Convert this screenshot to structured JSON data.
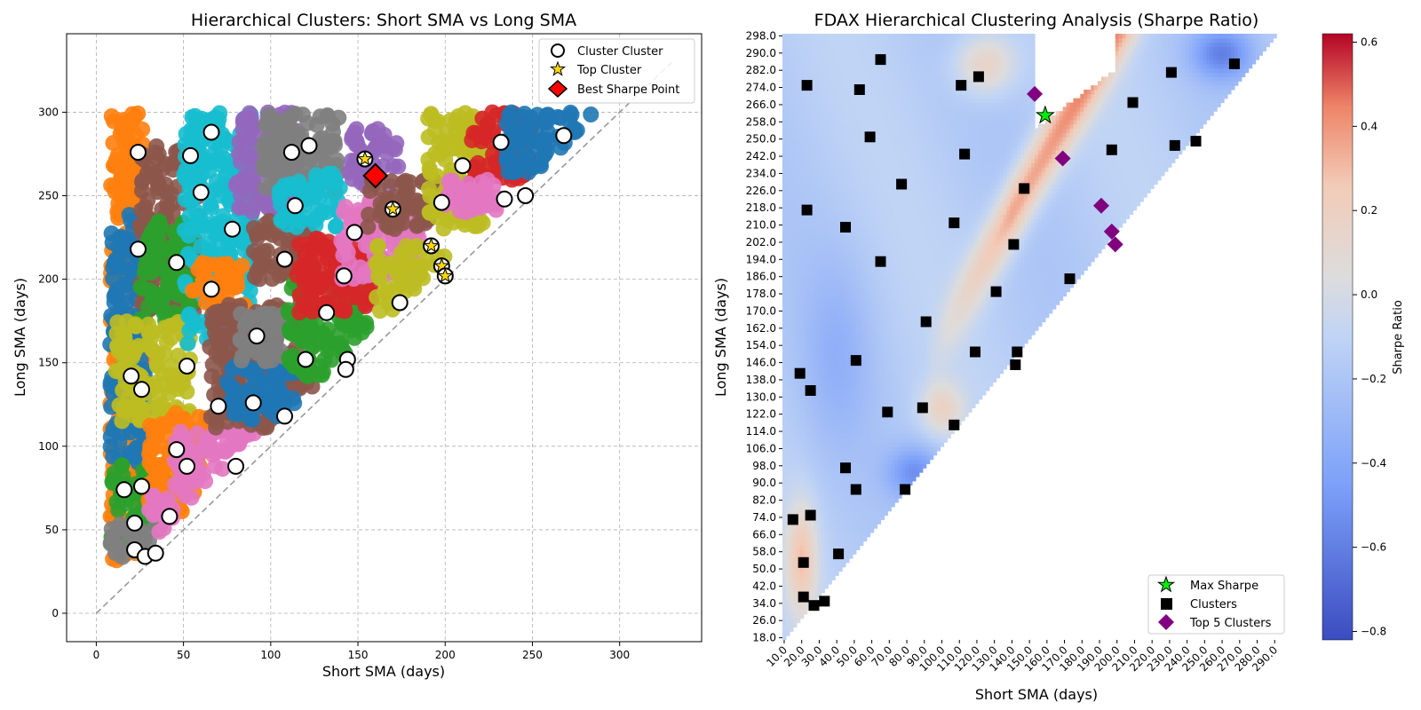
{
  "chart_data": [
    {
      "type": "scatter",
      "title": "Hierarchical Clusters: Short SMA vs Long SMA",
      "xlabel": "Short SMA (days)",
      "ylabel": "Long SMA (days)",
      "xlim": [
        -17,
        347
      ],
      "ylim": [
        -17,
        347
      ],
      "xticks": [
        0,
        50,
        100,
        150,
        200,
        250,
        300
      ],
      "yticks": [
        0,
        50,
        100,
        150,
        200,
        250,
        300
      ],
      "grid": true,
      "legend_position": "top-right",
      "legend": [
        "Cluster Cluster",
        "Top Cluster",
        "Best Sharpe Point"
      ],
      "diagonal_reference_line": [
        [
          0,
          0
        ],
        [
          330,
          330
        ]
      ],
      "cluster_palette": [
        "#1f77b4",
        "#ff7f0e",
        "#2ca02c",
        "#d62728",
        "#9467bd",
        "#8c564b",
        "#e377c2",
        "#7f7f7f",
        "#bcbd22",
        "#17becf"
      ],
      "cluster_regions": [
        {
          "color_index": 1,
          "x": [
            8,
            28
          ],
          "y": [
            20,
            300
          ]
        },
        {
          "color_index": 0,
          "x": [
            8,
            30
          ],
          "y": [
            90,
            240
          ]
        },
        {
          "color_index": 2,
          "x": [
            8,
            40
          ],
          "y": [
            40,
            90
          ]
        },
        {
          "color_index": 7,
          "x": [
            8,
            35
          ],
          "y": [
            25,
            55
          ]
        },
        {
          "color_index": 5,
          "x": [
            25,
            60
          ],
          "y": [
            180,
            280
          ]
        },
        {
          "color_index": 2,
          "x": [
            25,
            55
          ],
          "y": [
            175,
            240
          ]
        },
        {
          "color_index": 8,
          "x": [
            10,
            55
          ],
          "y": [
            115,
            175
          ]
        },
        {
          "color_index": 1,
          "x": [
            30,
            65
          ],
          "y": [
            60,
            120
          ]
        },
        {
          "color_index": 6,
          "x": [
            30,
            55
          ],
          "y": [
            40,
            75
          ]
        },
        {
          "color_index": 6,
          "x": [
            45,
            95
          ],
          "y": [
            75,
            110
          ]
        },
        {
          "color_index": 9,
          "x": [
            50,
            90
          ],
          "y": [
            160,
            300
          ]
        },
        {
          "color_index": 1,
          "x": [
            55,
            85
          ],
          "y": [
            180,
            210
          ]
        },
        {
          "color_index": 5,
          "x": [
            65,
            125
          ],
          "y": [
            110,
            185
          ]
        },
        {
          "color_index": 0,
          "x": [
            75,
            115
          ],
          "y": [
            115,
            150
          ]
        },
        {
          "color_index": 7,
          "x": [
            80,
            110
          ],
          "y": [
            150,
            180
          ]
        },
        {
          "color_index": 4,
          "x": [
            80,
            115
          ],
          "y": [
            240,
            300
          ]
        },
        {
          "color_index": 7,
          "x": [
            95,
            140
          ],
          "y": [
            250,
            300
          ]
        },
        {
          "color_index": 5,
          "x": [
            90,
            125
          ],
          "y": [
            200,
            235
          ]
        },
        {
          "color_index": 9,
          "x": [
            105,
            140
          ],
          "y": [
            230,
            265
          ]
        },
        {
          "color_index": 2,
          "x": [
            110,
            155
          ],
          "y": [
            140,
            200
          ]
        },
        {
          "color_index": 3,
          "x": [
            115,
            160
          ],
          "y": [
            180,
            225
          ]
        },
        {
          "color_index": 6,
          "x": [
            140,
            185
          ],
          "y": [
            200,
            250
          ]
        },
        {
          "color_index": 4,
          "x": [
            145,
            175
          ],
          "y": [
            255,
            290
          ]
        },
        {
          "color_index": 5,
          "x": [
            155,
            195
          ],
          "y": [
            230,
            260
          ]
        },
        {
          "color_index": 8,
          "x": [
            160,
            205
          ],
          "y": [
            180,
            220
          ]
        },
        {
          "color_index": 8,
          "x": [
            190,
            225
          ],
          "y": [
            230,
            300
          ]
        },
        {
          "color_index": 3,
          "x": [
            215,
            250
          ],
          "y": [
            255,
            300
          ]
        },
        {
          "color_index": 6,
          "x": [
            200,
            230
          ],
          "y": [
            240,
            260
          ]
        },
        {
          "color_index": 0,
          "x": [
            235,
            300
          ],
          "y": [
            260,
            300
          ]
        }
      ],
      "cluster_centers": [
        [
          24,
          276
        ],
        [
          54,
          274
        ],
        [
          66,
          288
        ],
        [
          60,
          252
        ],
        [
          78,
          230
        ],
        [
          24,
          218
        ],
        [
          46,
          210
        ],
        [
          66,
          194
        ],
        [
          112,
          276
        ],
        [
          122,
          280
        ],
        [
          114,
          244
        ],
        [
          108,
          212
        ],
        [
          148,
          228
        ],
        [
          142,
          202
        ],
        [
          132,
          180
        ],
        [
          92,
          166
        ],
        [
          120,
          152
        ],
        [
          144,
          152
        ],
        [
          143,
          146
        ],
        [
          174,
          186
        ],
        [
          198,
          246
        ],
        [
          210,
          268
        ],
        [
          232,
          282
        ],
        [
          234,
          248
        ],
        [
          246,
          250
        ],
        [
          268,
          286
        ],
        [
          20,
          142
        ],
        [
          26,
          134
        ],
        [
          52,
          148
        ],
        [
          70,
          124
        ],
        [
          90,
          126
        ],
        [
          108,
          118
        ],
        [
          46,
          98
        ],
        [
          52,
          88
        ],
        [
          80,
          88
        ],
        [
          16,
          74
        ],
        [
          26,
          76
        ],
        [
          22,
          54
        ],
        [
          42,
          58
        ],
        [
          22,
          38
        ],
        [
          28,
          34
        ],
        [
          34,
          36
        ]
      ],
      "top_clusters": [
        [
          154,
          272
        ],
        [
          170,
          242
        ],
        [
          192,
          220
        ],
        [
          198,
          208
        ],
        [
          200,
          202
        ]
      ],
      "best_sharpe_point": [
        160,
        262
      ]
    },
    {
      "type": "heatmap",
      "title": "FDAX Hierarchical Clustering Analysis (Sharpe Ratio)",
      "xlabel": "Short SMA (days)",
      "ylabel": "Long SMA (days)",
      "value_label": "Sharpe Ratio",
      "x_range": [
        10,
        300
      ],
      "y_range": [
        18,
        300
      ],
      "cell_step": 2,
      "x_tick_labels": [
        "10.0",
        "20.0",
        "30.0",
        "40.0",
        "50.0",
        "60.0",
        "70.0",
        "80.0",
        "90.0",
        "100.0",
        "110.0",
        "120.0",
        "130.0",
        "140.0",
        "150.0",
        "160.0",
        "170.0",
        "180.0",
        "190.0",
        "200.0",
        "210.0",
        "220.0",
        "230.0",
        "240.0",
        "250.0",
        "260.0",
        "270.0",
        "280.0",
        "290.0"
      ],
      "y_tick_labels": [
        "298.0",
        "290.0",
        "282.0",
        "274.0",
        "266.0",
        "258.0",
        "250.0",
        "242.0",
        "234.0",
        "226.0",
        "218.0",
        "210.0",
        "202.0",
        "194.0",
        "186.0",
        "178.0",
        "170.0",
        "162.0",
        "154.0",
        "146.0",
        "138.0",
        "130.0",
        "122.0",
        "114.0",
        "106.0",
        "98.0",
        "90.0",
        "82.0",
        "74.0",
        "66.0",
        "58.0",
        "50.0",
        "42.0",
        "34.0",
        "26.0",
        "18.0"
      ],
      "colorscale": "coolwarm",
      "color_range": [
        -0.82,
        0.62
      ],
      "colorbar_ticks": [
        "0.6",
        "0.4",
        "0.2",
        "0.0",
        "−0.2",
        "−0.4",
        "−0.6",
        "−0.8"
      ],
      "colorbar_tick_values": [
        0.6,
        0.4,
        0.2,
        0.0,
        -0.2,
        -0.4,
        -0.6,
        -0.8
      ],
      "legend_position": "bottom-right",
      "legend": [
        "Max Sharpe",
        "Clusters",
        "Top 5 Clusters"
      ],
      "max_sharpe": [
        160,
        262
      ],
      "top5_clusters": [
        [
          154,
          272
        ],
        [
          170,
          242
        ],
        [
          192,
          220
        ],
        [
          198,
          208
        ],
        [
          200,
          202
        ]
      ],
      "cluster_centers": [
        [
          24,
          276
        ],
        [
          54,
          274
        ],
        [
          66,
          288
        ],
        [
          60,
          252
        ],
        [
          78,
          230
        ],
        [
          24,
          218
        ],
        [
          46,
          210
        ],
        [
          66,
          194
        ],
        [
          112,
          276
        ],
        [
          122,
          280
        ],
        [
          114,
          244
        ],
        [
          108,
          212
        ],
        [
          148,
          228
        ],
        [
          142,
          202
        ],
        [
          132,
          180
        ],
        [
          92,
          166
        ],
        [
          120,
          152
        ],
        [
          144,
          152
        ],
        [
          143,
          146
        ],
        [
          174,
          186
        ],
        [
          198,
          246
        ],
        [
          210,
          268
        ],
        [
          232,
          282
        ],
        [
          234,
          248
        ],
        [
          246,
          250
        ],
        [
          268,
          286
        ],
        [
          20,
          142
        ],
        [
          26,
          134
        ],
        [
          52,
          148
        ],
        [
          70,
          124
        ],
        [
          90,
          126
        ],
        [
          108,
          118
        ],
        [
          46,
          98
        ],
        [
          52,
          88
        ],
        [
          80,
          88
        ],
        [
          16,
          74
        ],
        [
          26,
          76
        ],
        [
          22,
          54
        ],
        [
          42,
          58
        ],
        [
          22,
          38
        ],
        [
          28,
          34
        ],
        [
          34,
          36
        ]
      ]
    }
  ]
}
